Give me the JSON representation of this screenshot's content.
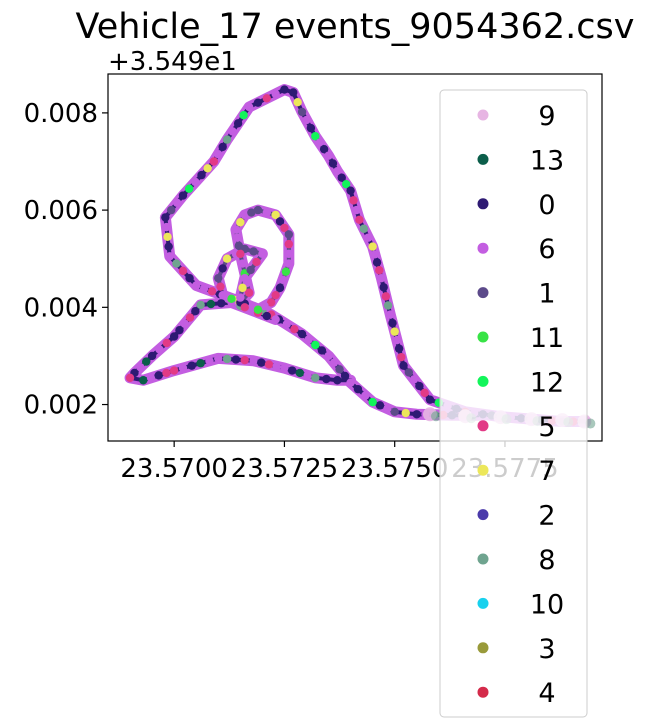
{
  "chart_data": {
    "type": "scatter",
    "title": "Vehicle_17 events_9054362.csv",
    "xlabel": "",
    "ylabel": "",
    "y_offset_label": "+3.549e1",
    "xlim": [
      23.5685,
      23.5797
    ],
    "ylim": [
      0.00125,
      0.0088
    ],
    "x_ticks": [
      23.57,
      23.5725,
      23.575,
      23.5775
    ],
    "x_tick_labels": [
      "23.5700",
      "23.5725",
      "23.5750",
      "23.5775"
    ],
    "y_ticks": [
      0.002,
      0.004,
      0.006,
      0.008
    ],
    "y_tick_labels": [
      "0.002",
      "0.004",
      "0.006",
      "0.008"
    ],
    "grid": false,
    "legend_position": "right",
    "route": {
      "x": [
        23.577,
        23.5763,
        23.5755,
        23.575,
        23.5745,
        23.574,
        23.5735,
        23.5729,
        23.5722,
        23.5714,
        23.5705,
        23.5699,
        23.5698,
        23.5702,
        23.5709,
        23.5712,
        23.5717,
        23.5725,
        23.5727,
        23.5729,
        23.5732,
        23.5735,
        23.5737,
        23.574,
        23.5742,
        23.5745,
        23.5747,
        23.5749,
        23.5752,
        23.5758,
        23.5766,
        23.5774,
        23.5781,
        23.5788,
        23.5793
      ],
      "y": [
        0.00178,
        0.00178,
        0.0018,
        0.00185,
        0.00205,
        0.00245,
        0.003,
        0.00345,
        0.00385,
        0.00415,
        0.00445,
        0.00505,
        0.00585,
        0.0063,
        0.007,
        0.00745,
        0.00812,
        0.00848,
        0.00842,
        0.00802,
        0.00752,
        0.00712,
        0.0068,
        0.0064,
        0.0058,
        0.00525,
        0.0046,
        0.00385,
        0.0028,
        0.0021,
        0.00185,
        0.00175,
        0.0017,
        0.00165,
        0.00165
      ]
    },
    "loop": {
      "x": [
        23.5723,
        23.5713,
        23.5706,
        23.57,
        23.5695,
        23.5691,
        23.569,
        23.5693,
        23.57,
        23.571,
        23.5718,
        23.5725,
        23.5732,
        23.5737,
        23.574
      ],
      "y": [
        0.00375,
        0.0041,
        0.00405,
        0.0034,
        0.003,
        0.00265,
        0.00255,
        0.0025,
        0.0027,
        0.00295,
        0.0029,
        0.00275,
        0.00255,
        0.0025,
        0.0025
      ]
    },
    "inner_loop": {
      "x": [
        23.572,
        23.5716,
        23.5712,
        23.571,
        23.5711,
        23.5715,
        23.5717,
        23.5716,
        23.5715,
        23.5714,
        23.5716,
        23.5719,
        23.5723,
        23.5726,
        23.5726,
        23.5724,
        23.5722,
        23.5719,
        23.5716,
        23.5715,
        23.5716,
        23.572
      ],
      "y": [
        0.0051,
        0.0052,
        0.005,
        0.0046,
        0.00425,
        0.0041,
        0.0043,
        0.0047,
        0.0051,
        0.0056,
        0.0059,
        0.006,
        0.0059,
        0.0055,
        0.0049,
        0.0044,
        0.0041,
        0.00395,
        0.004,
        0.0042,
        0.0046,
        0.0051
      ]
    },
    "series": [
      {
        "name": "9",
        "color": "#e7b5e3"
      },
      {
        "name": "13",
        "color": "#0b5e4a"
      },
      {
        "name": "0",
        "color": "#2e1a73"
      },
      {
        "name": "6",
        "color": "#c35ee1"
      },
      {
        "name": "1",
        "color": "#5c4a8a"
      },
      {
        "name": "11",
        "color": "#38e346"
      },
      {
        "name": "12",
        "color": "#12f55a"
      },
      {
        "name": "5",
        "color": "#e23a86"
      },
      {
        "name": "7",
        "color": "#ece75a"
      },
      {
        "name": "2",
        "color": "#4a3aaa"
      },
      {
        "name": "8",
        "color": "#6fa48f"
      },
      {
        "name": "10",
        "color": "#18d1ee"
      },
      {
        "name": "3",
        "color": "#999a3a"
      },
      {
        "name": "4",
        "color": "#d42a4a"
      }
    ]
  }
}
